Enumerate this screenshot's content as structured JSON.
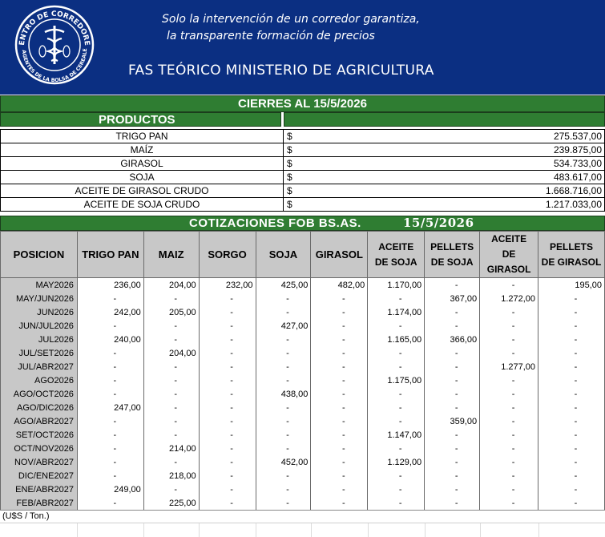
{
  "header": {
    "logo_text_top": "CENTRO DE CORREDORES",
    "logo_text_bottom": "Y AGENTES DE LA BOLSA DE CEREALES",
    "slogan_line1": "Solo la intervención de un corredor garantiza,",
    "slogan_line2": "la transparente  formación de precios",
    "title": "FAS TEÓRICO MINISTERIO DE AGRICULTURA",
    "brand_color": "#0b2f82",
    "band_color": "#2f7d32"
  },
  "cierres": {
    "label": "CIERRES AL  15/5/2026",
    "productos_header": "PRODUCTOS",
    "currency": "$",
    "items": [
      {
        "name": "TRIGO PAN",
        "value": "275.537,00"
      },
      {
        "name": "MAÍZ",
        "value": "239.875,00"
      },
      {
        "name": "GIRASOL",
        "value": "534.733,00"
      },
      {
        "name": "SOJA",
        "value": "483.617,00"
      },
      {
        "name": "ACEITE DE GIRASOL CRUDO",
        "value": "1.668.716,00"
      },
      {
        "name": "ACEITE DE SOJA CRUDO",
        "value": "1.217.033,00"
      }
    ]
  },
  "fob": {
    "title": "COTIZACIONES FOB BS.AS.",
    "date": "15/5/2026",
    "headers": [
      {
        "l1": "POSICION",
        "l2": ""
      },
      {
        "l1": "TRIGO PAN",
        "l2": ""
      },
      {
        "l1": "MAIZ",
        "l2": ""
      },
      {
        "l1": "SORGO",
        "l2": ""
      },
      {
        "l1": "SOJA",
        "l2": ""
      },
      {
        "l1": "GIRASOL",
        "l2": ""
      },
      {
        "l1": "ACEITE",
        "l2": "DE SOJA"
      },
      {
        "l1": "PELLETS",
        "l2": "DE SOJA"
      },
      {
        "l1": "ACEITE",
        "l2": "DE GIRASOL"
      },
      {
        "l1": "PELLETS",
        "l2": "DE GIRASOL"
      }
    ],
    "rows": [
      [
        "MAY2026",
        "236,00",
        "204,00",
        "232,00",
        "425,00",
        "482,00",
        "1.170,00",
        "-",
        "-",
        "195,00"
      ],
      [
        "MAY/JUN2026",
        "-",
        "-",
        "-",
        "-",
        "-",
        "-",
        "367,00",
        "1.272,00",
        "-"
      ],
      [
        "JUN2026",
        "242,00",
        "205,00",
        "-",
        "-",
        "-",
        "1.174,00",
        "-",
        "-",
        "-"
      ],
      [
        "JUN/JUL2026",
        "-",
        "-",
        "-",
        "427,00",
        "-",
        "-",
        "-",
        "-",
        "-"
      ],
      [
        "JUL2026",
        "240,00",
        "-",
        "-",
        "-",
        "-",
        "1.165,00",
        "366,00",
        "-",
        "-"
      ],
      [
        "JUL/SET2026",
        "-",
        "204,00",
        "-",
        "-",
        "-",
        "-",
        "-",
        "-",
        "-"
      ],
      [
        "JUL/ABR2027",
        "-",
        "-",
        "-",
        "-",
        "-",
        "-",
        "-",
        "1.277,00",
        "-"
      ],
      [
        "AGO2026",
        "-",
        "-",
        "-",
        "-",
        "-",
        "1.175,00",
        "-",
        "-",
        "-"
      ],
      [
        "AGO/OCT2026",
        "-",
        "-",
        "-",
        "438,00",
        "-",
        "-",
        "-",
        "-",
        "-"
      ],
      [
        "AGO/DIC2026",
        "247,00",
        "-",
        "-",
        "-",
        "-",
        "-",
        "-",
        "-",
        "-"
      ],
      [
        "AGO/ABR2027",
        "-",
        "-",
        "-",
        "-",
        "-",
        "-",
        "359,00",
        "-",
        "-"
      ],
      [
        "SET/OCT2026",
        "-",
        "-",
        "-",
        "-",
        "-",
        "1.147,00",
        "-",
        "-",
        "-"
      ],
      [
        "OCT/NOV2026",
        "-",
        "214,00",
        "-",
        "-",
        "-",
        "-",
        "-",
        "-",
        "-"
      ],
      [
        "NOV/ABR2027",
        "-",
        "-",
        "-",
        "452,00",
        "-",
        "1.129,00",
        "-",
        "-",
        "-"
      ],
      [
        "DIC/ENE2027",
        "-",
        "218,00",
        "-",
        "-",
        "-",
        "-",
        "-",
        "-",
        "-"
      ],
      [
        "ENE/ABR2027",
        "249,00",
        "-",
        "-",
        "-",
        "-",
        "-",
        "-",
        "-",
        "-"
      ],
      [
        "FEB/ABR2027",
        "-",
        "225,00",
        "-",
        "-",
        "-",
        "-",
        "-",
        "-",
        "-"
      ]
    ],
    "unit_note": "(U$S /  Ton.)"
  }
}
